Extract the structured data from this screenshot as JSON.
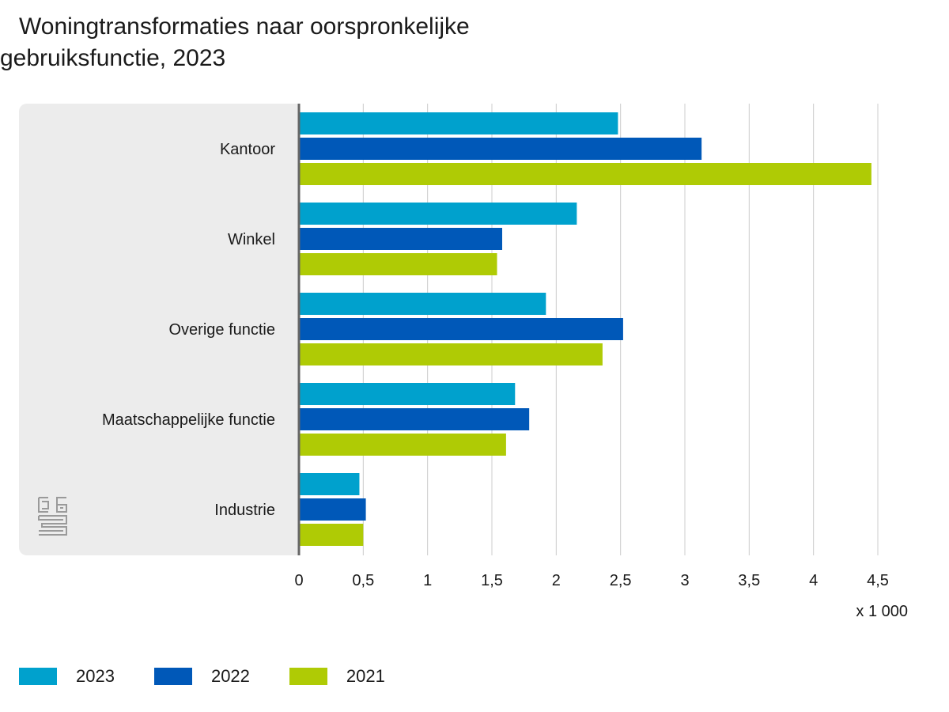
{
  "title": {
    "line1": "Woningtransformaties naar oorspronkelijke",
    "line2": "gebruiksfunctie, 2023"
  },
  "unit_label": "x 1 000",
  "logo_icon": "cbs-logo-icon",
  "colors": {
    "2023": "#00a1cd",
    "2022": "#0058b8",
    "2021": "#afcb05",
    "panel": "#ececec",
    "grid": "#cccccc",
    "axis": "#666666"
  },
  "chart_data": {
    "type": "bar",
    "orientation": "horizontal",
    "title": "Woningtransformaties naar oorspronkelijke gebruiksfunctie, 2023",
    "categories": [
      "Kantoor",
      "Winkel",
      "Overige functie",
      "Maatschappelijke functie",
      "Industrie"
    ],
    "series": [
      {
        "name": "2023",
        "values": [
          2.48,
          2.16,
          1.92,
          1.68,
          0.47
        ]
      },
      {
        "name": "2022",
        "values": [
          3.13,
          1.58,
          2.52,
          1.79,
          0.52
        ]
      },
      {
        "name": "2021",
        "values": [
          4.45,
          1.54,
          2.36,
          1.61,
          0.5
        ]
      }
    ],
    "xlim": [
      0,
      4.5
    ],
    "ticks": [
      0,
      0.5,
      1,
      1.5,
      2,
      2.5,
      3,
      3.5,
      4,
      4.5
    ],
    "tick_labels": [
      "0",
      "0,5",
      "1",
      "1,5",
      "2",
      "2,5",
      "3",
      "3,5",
      "4",
      "4,5"
    ],
    "xlabel": "x 1 000",
    "ylabel": "",
    "grid": true,
    "legend_position": "bottom-left"
  }
}
